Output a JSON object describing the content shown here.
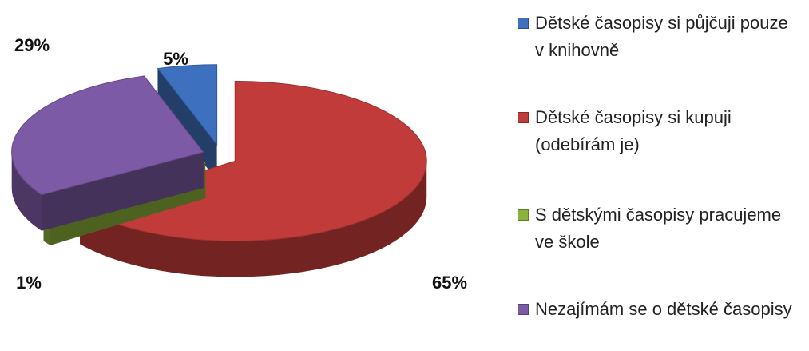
{
  "chart_data": {
    "type": "pie3d",
    "categories": [
      "Dětské časopisy si půjčuji pouze v knihovně",
      "Dětské časopisy si kupuji (odebírám je)",
      "S dětskými časopisy pracujeme ve škole",
      "Nezajímám se o dětské časopisy"
    ],
    "values": [
      5,
      65,
      1,
      29
    ],
    "value_labels": [
      "5%",
      "65%",
      "1%",
      "29%"
    ],
    "colors": [
      "#3d70bf",
      "#c23b3b",
      "#8cb13c",
      "#7d5aa6"
    ],
    "legend": "right"
  }
}
